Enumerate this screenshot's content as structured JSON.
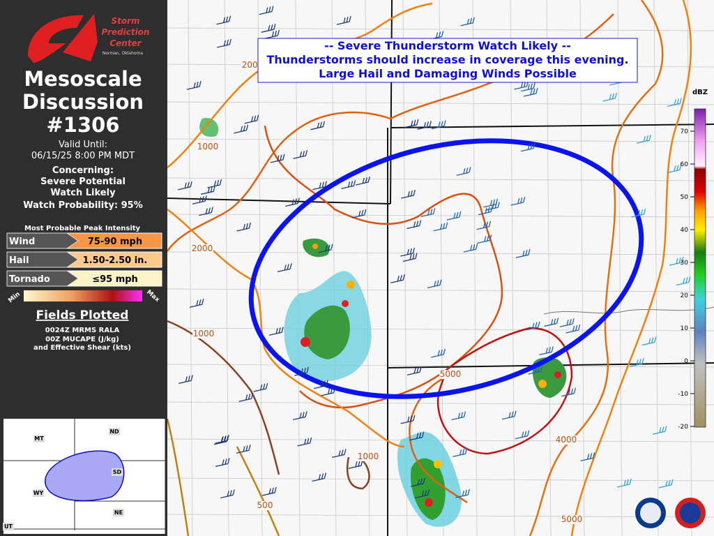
{
  "sidebar": {
    "logo": {
      "name": [
        "Storm",
        "Prediction",
        "Center"
      ],
      "location": "Norman, Oklahoma"
    },
    "title": [
      "Mesoscale",
      "Discussion",
      "#1306"
    ],
    "valid_label": "Valid Until:",
    "valid_time": "06/15/25 8:00 PM MDT",
    "concerning": [
      "Concerning:",
      "Severe Potential",
      "Watch Likely",
      "Watch Probability: 95%"
    ],
    "intensity": {
      "title": "Most Probable Peak Intensity",
      "rows": [
        {
          "hazard": "Wind",
          "value": "75-90 mph"
        },
        {
          "hazard": "Hail",
          "value": "1.50-2.50 in."
        },
        {
          "hazard": "Tornado",
          "value": "≤95 mph"
        }
      ],
      "scale": [
        "Min",
        "Max"
      ]
    },
    "fields": {
      "title": "Fields Plotted",
      "lines": [
        "0024Z MRMS RALA",
        "00Z MUCAPE (J/kg)",
        "and Effective Shear (kts)"
      ]
    },
    "inset": {
      "states": [
        "MT",
        "ND",
        "SD",
        "WY",
        "NE",
        "UT"
      ]
    }
  },
  "map": {
    "banner": [
      "-- Severe Thunderstorm Watch Likely --",
      "Thunderstorms should increase in coverage this evening.",
      "Large Hail and Damaging Winds Possible"
    ],
    "contour_labels": [
      2000,
      1000,
      2000,
      1000,
      1000,
      5000,
      4000,
      500,
      5000
    ],
    "colorbar": {
      "label": "dBZ",
      "ticks": [
        70,
        60,
        50,
        40,
        30,
        20,
        10,
        0,
        -10,
        -20
      ]
    }
  }
}
